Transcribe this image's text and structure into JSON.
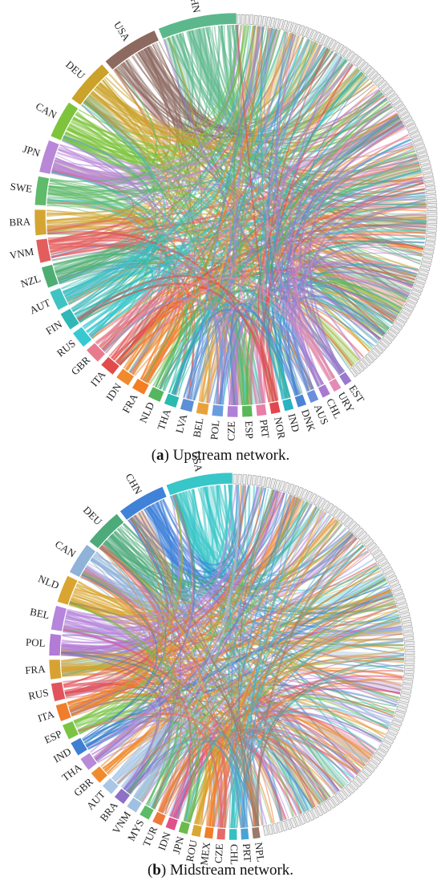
{
  "panels": [
    {
      "caption": {
        "prefix": "(",
        "label": "a",
        "suffix": ") Upstream network."
      },
      "nodes": [
        {
          "label": "CHN",
          "color": "#5cb88c"
        },
        {
          "label": "USA",
          "color": "#8d6a60"
        },
        {
          "label": "DEU",
          "color": "#cba22a"
        },
        {
          "label": "CAN",
          "color": "#7dc43c"
        },
        {
          "label": "JPN",
          "color": "#b987d8"
        },
        {
          "label": "SWE",
          "color": "#5fba6a"
        },
        {
          "label": "BRA",
          "color": "#d4a533"
        },
        {
          "label": "VNM",
          "color": "#e35d5d"
        },
        {
          "label": "NZL",
          "color": "#4dae72"
        },
        {
          "label": "AUT",
          "color": "#3fc3c3"
        },
        {
          "label": "FIN",
          "color": "#2fb7b7"
        },
        {
          "label": "RUS",
          "color": "#36c9d2"
        },
        {
          "label": "GBR",
          "color": "#e87a8e"
        },
        {
          "label": "ITA",
          "color": "#e24b4b"
        },
        {
          "label": "IDN",
          "color": "#f08a2c"
        },
        {
          "label": "FRA",
          "color": "#f57d22"
        },
        {
          "label": "NLD",
          "color": "#56b65e"
        },
        {
          "label": "THA",
          "color": "#2cb9b0"
        },
        {
          "label": "LVA",
          "color": "#5b8fd6"
        },
        {
          "label": "BEL",
          "color": "#e9a23a"
        },
        {
          "label": "POL",
          "color": "#6a9de0"
        },
        {
          "label": "CZE",
          "color": "#b07fd6"
        },
        {
          "label": "ESP",
          "color": "#58b858"
        },
        {
          "label": "PRT",
          "color": "#e77fa8"
        },
        {
          "label": "NOR",
          "color": "#e2474f"
        },
        {
          "label": "IND",
          "color": "#27b3c2"
        },
        {
          "label": "DNK",
          "color": "#4b84d4"
        },
        {
          "label": "AUS",
          "color": "#6a90dc"
        },
        {
          "label": "CHL",
          "color": "#a97ad2"
        },
        {
          "label": "URY",
          "color": "#e48ab6"
        },
        {
          "label": "EST",
          "color": "#9a79cc"
        }
      ]
    },
    {
      "caption": {
        "prefix": "(",
        "label": "b",
        "suffix": ") Midstream network."
      },
      "nodes": [
        {
          "label": "USA",
          "color": "#38c6c8"
        },
        {
          "label": "CHN",
          "color": "#3f82d8"
        },
        {
          "label": "DEU",
          "color": "#4daa7a"
        },
        {
          "label": "CAN",
          "color": "#8fb2d9"
        },
        {
          "label": "NLD",
          "color": "#d9a530"
        },
        {
          "label": "BEL",
          "color": "#b685dc"
        },
        {
          "label": "POL",
          "color": "#b37ad6"
        },
        {
          "label": "FRA",
          "color": "#d8a233"
        },
        {
          "label": "RUS",
          "color": "#e2545c"
        },
        {
          "label": "ITA",
          "color": "#f07d2a"
        },
        {
          "label": "ESP",
          "color": "#7bc443"
        },
        {
          "label": "IND",
          "color": "#3d7fd2"
        },
        {
          "label": "THA",
          "color": "#b88ad8"
        },
        {
          "label": "GBR",
          "color": "#f08c2e"
        },
        {
          "label": "AUT",
          "color": "#a9c6e6"
        },
        {
          "label": "BRA",
          "color": "#8e70c6"
        },
        {
          "label": "VNM",
          "color": "#9fc0e2"
        },
        {
          "label": "MYS",
          "color": "#5cbb66"
        },
        {
          "label": "TUR",
          "color": "#ee7a3a"
        },
        {
          "label": "IDN",
          "color": "#e2508a"
        },
        {
          "label": "JPN",
          "color": "#6cba4c"
        },
        {
          "label": "ROU",
          "color": "#d9a832"
        },
        {
          "label": "MEX",
          "color": "#f07e26"
        },
        {
          "label": "CZE",
          "color": "#e66a6a"
        },
        {
          "label": "CHL",
          "color": "#36c0c2"
        },
        {
          "label": "PRT",
          "color": "#4aa3d6"
        },
        {
          "label": "NPL",
          "color": "#9a7a6a"
        }
      ]
    }
  ]
}
